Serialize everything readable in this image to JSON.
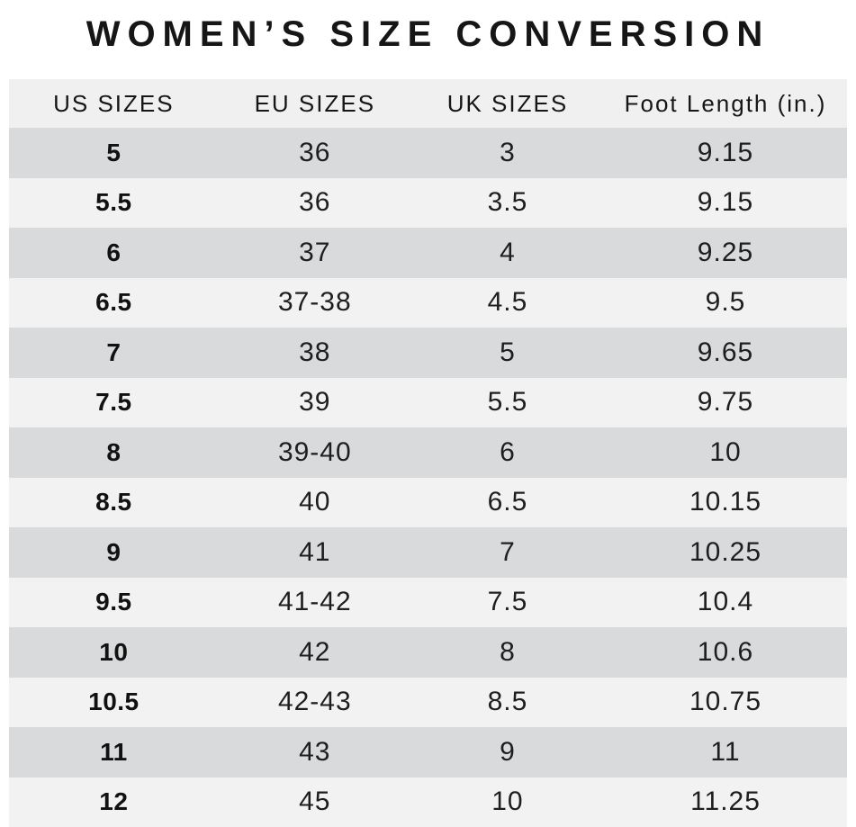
{
  "chart_data": {
    "type": "table",
    "title": "WOMEN’S SIZE CONVERSION",
    "columns": [
      "US SIZES",
      "EU SIZES",
      "UK SIZES",
      "Foot Length (in.)"
    ],
    "rows": [
      [
        "5",
        "36",
        "3",
        "9.15"
      ],
      [
        "5.5",
        "36",
        "3.5",
        "9.15"
      ],
      [
        "6",
        "37",
        "4",
        "9.25"
      ],
      [
        "6.5",
        "37-38",
        "4.5",
        "9.5"
      ],
      [
        "7",
        "38",
        "5",
        "9.65"
      ],
      [
        "7.5",
        "39",
        "5.5",
        "9.75"
      ],
      [
        "8",
        "39-40",
        "6",
        "10"
      ],
      [
        "8.5",
        "40",
        "6.5",
        "10.15"
      ],
      [
        "9",
        "41",
        "7",
        "10.25"
      ],
      [
        "9.5",
        "41-42",
        "7.5",
        "10.4"
      ],
      [
        "10",
        "42",
        "8",
        "10.6"
      ],
      [
        "10.5",
        "42-43",
        "8.5",
        "10.75"
      ],
      [
        "11",
        "43",
        "9",
        "11"
      ],
      [
        "12",
        "45",
        "10",
        "11.25"
      ]
    ],
    "layout": {
      "striped": true,
      "first_data_row_shade": "dark",
      "bold_column": "US SIZES",
      "grid": "none",
      "legend": "none"
    }
  },
  "colors": {
    "page_background": "#ffffff",
    "header_row_background": "#f0f0f1",
    "row_dark_background": "#d9dadb",
    "row_light_background": "#f2f2f3",
    "text": "#161616"
  }
}
